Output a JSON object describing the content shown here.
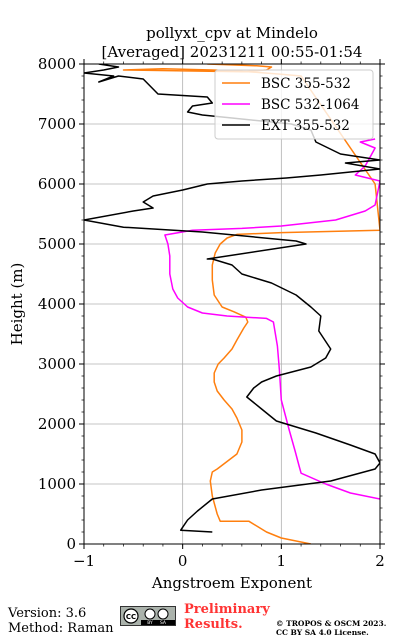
{
  "chart_data": {
    "type": "line",
    "title": [
      "pollyxt_cpv at Mindelo",
      "[Averaged] 20231211 00:55-01:54"
    ],
    "xlabel": "Angstroem Exponent",
    "ylabel": "Height (m)",
    "xlim": [
      -1,
      2
    ],
    "ylim": [
      0,
      8000
    ],
    "xticks": [
      "−1",
      "0",
      "1",
      "2"
    ],
    "yticks": [
      "0",
      "1000",
      "2000",
      "3000",
      "4000",
      "5000",
      "6000",
      "7000",
      "8000"
    ],
    "grid": true,
    "legend_position": "top-right",
    "series": [
      {
        "name": "BSC 355-532",
        "color": "#ff7f0e",
        "points": [
          [
            1.3,
            0
          ],
          [
            1.0,
            100
          ],
          [
            0.85,
            200
          ],
          [
            0.75,
            300
          ],
          [
            0.67,
            380
          ],
          [
            0.38,
            380
          ],
          [
            0.35,
            500
          ],
          [
            0.3,
            800
          ],
          [
            0.28,
            1050
          ],
          [
            0.3,
            1200
          ],
          [
            0.35,
            1250
          ],
          [
            0.55,
            1500
          ],
          [
            0.6,
            1700
          ],
          [
            0.6,
            1900
          ],
          [
            0.55,
            2100
          ],
          [
            0.5,
            2250
          ],
          [
            0.42,
            2400
          ],
          [
            0.35,
            2550
          ],
          [
            0.32,
            2700
          ],
          [
            0.32,
            2850
          ],
          [
            0.36,
            3000
          ],
          [
            0.42,
            3100
          ],
          [
            0.5,
            3250
          ],
          [
            0.55,
            3400
          ],
          [
            0.62,
            3600
          ],
          [
            0.66,
            3700
          ],
          [
            0.64,
            3780
          ],
          [
            0.52,
            3870
          ],
          [
            0.4,
            3950
          ],
          [
            0.32,
            4150
          ],
          [
            0.3,
            4400
          ],
          [
            0.3,
            4650
          ],
          [
            0.33,
            4850
          ],
          [
            0.38,
            5000
          ],
          [
            0.45,
            5100
          ],
          [
            0.55,
            5160
          ],
          [
            1.0,
            5190
          ],
          [
            2.0,
            5230
          ],
          [
            1.95,
            6000
          ],
          [
            1.2,
            7800
          ],
          [
            1.0,
            7830
          ],
          [
            0.6,
            7880
          ],
          [
            0.3,
            7900
          ],
          [
            -0.2,
            7920
          ],
          [
            -0.6,
            7900
          ],
          [
            0.6,
            7870
          ],
          [
            0.85,
            7900
          ],
          [
            0.9,
            7950
          ],
          [
            0.75,
            7970
          ],
          [
            0.25,
            8000
          ]
        ]
      },
      {
        "name": "BSC 532-1064",
        "color": "#ff00ff",
        "points": [
          [
            2.0,
            750
          ],
          [
            1.7,
            850
          ],
          [
            1.45,
            1000
          ],
          [
            1.2,
            1180
          ],
          [
            1.18,
            1300
          ],
          [
            1.14,
            1550
          ],
          [
            1.08,
            1900
          ],
          [
            1.0,
            2400
          ],
          [
            0.98,
            2900
          ],
          [
            0.96,
            3300
          ],
          [
            0.92,
            3700
          ],
          [
            0.85,
            3760
          ],
          [
            0.65,
            3780
          ],
          [
            0.45,
            3800
          ],
          [
            0.2,
            3850
          ],
          [
            0.05,
            3950
          ],
          [
            -0.05,
            4100
          ],
          [
            -0.1,
            4250
          ],
          [
            -0.13,
            4500
          ],
          [
            -0.13,
            4800
          ],
          [
            -0.15,
            5000
          ],
          [
            -0.18,
            5150
          ],
          [
            0.1,
            5230
          ],
          [
            0.6,
            5260
          ],
          [
            1.0,
            5300
          ],
          [
            1.55,
            5400
          ],
          [
            1.85,
            5550
          ],
          [
            1.95,
            5650
          ],
          [
            2.0,
            6050
          ],
          [
            1.75,
            6150
          ],
          [
            1.85,
            6300
          ],
          [
            1.95,
            6600
          ],
          [
            1.8,
            6700
          ],
          [
            1.95,
            6750
          ]
        ]
      },
      {
        "name": "EXT 355-532",
        "color": "#000000",
        "points": [
          [
            0.3,
            200
          ],
          [
            -0.02,
            230
          ],
          [
            0.0,
            280
          ],
          [
            0.05,
            400
          ],
          [
            0.15,
            550
          ],
          [
            0.3,
            750
          ],
          [
            0.8,
            900
          ],
          [
            1.5,
            1050
          ],
          [
            1.95,
            1250
          ],
          [
            2.0,
            1350
          ],
          [
            1.95,
            1500
          ],
          [
            1.7,
            1650
          ],
          [
            1.35,
            1850
          ],
          [
            0.95,
            2050
          ],
          [
            0.8,
            2250
          ],
          [
            0.65,
            2450
          ],
          [
            0.72,
            2600
          ],
          [
            0.8,
            2700
          ],
          [
            0.95,
            2800
          ],
          [
            1.3,
            2950
          ],
          [
            1.45,
            3100
          ],
          [
            1.5,
            3250
          ],
          [
            1.38,
            3550
          ],
          [
            1.4,
            3800
          ],
          [
            1.3,
            3950
          ],
          [
            1.15,
            4150
          ],
          [
            0.9,
            4350
          ],
          [
            0.6,
            4500
          ],
          [
            0.5,
            4650
          ],
          [
            0.3,
            4750
          ],
          [
            0.25,
            4750
          ],
          [
            1.25,
            5000
          ],
          [
            1.15,
            5050
          ],
          [
            0.2,
            5200
          ],
          [
            -0.6,
            5280
          ],
          [
            -1.0,
            5400
          ],
          [
            -0.5,
            5550
          ],
          [
            -0.3,
            5600
          ],
          [
            -0.4,
            5700
          ],
          [
            -0.3,
            5800
          ],
          [
            0.0,
            5900
          ],
          [
            0.25,
            6000
          ],
          [
            0.6,
            6050
          ],
          [
            1.05,
            6100
          ],
          [
            1.4,
            6150
          ],
          [
            1.7,
            6200
          ],
          [
            2.0,
            6250
          ],
          [
            1.65,
            6350
          ],
          [
            2.0,
            6400
          ],
          [
            1.6,
            6500
          ],
          [
            1.35,
            6700
          ],
          [
            1.3,
            6900
          ],
          [
            1.1,
            7000
          ],
          [
            0.8,
            7050
          ],
          [
            0.5,
            7100
          ],
          [
            0.2,
            7150
          ],
          [
            0.05,
            7200
          ],
          [
            0.1,
            7300
          ],
          [
            0.3,
            7350
          ],
          [
            0.25,
            7450
          ],
          [
            -0.25,
            7500
          ],
          [
            -0.4,
            7750
          ],
          [
            -0.65,
            7800
          ],
          [
            -0.85,
            7700
          ],
          [
            -0.7,
            7800
          ],
          [
            -1.0,
            7850
          ],
          [
            -0.8,
            7900
          ],
          [
            -0.65,
            7950
          ],
          [
            -0.85,
            8000
          ]
        ]
      }
    ]
  },
  "footer": {
    "version": "Version: 3.6",
    "method": "Method: Raman",
    "preliminary": "Preliminary Results.",
    "copyright_line1": "© TROPOS & OSCM 2023.",
    "copyright_line2": "CC BY SA 4.0 License.",
    "license_badge": [
      "CC",
      "BY",
      "SA"
    ]
  }
}
